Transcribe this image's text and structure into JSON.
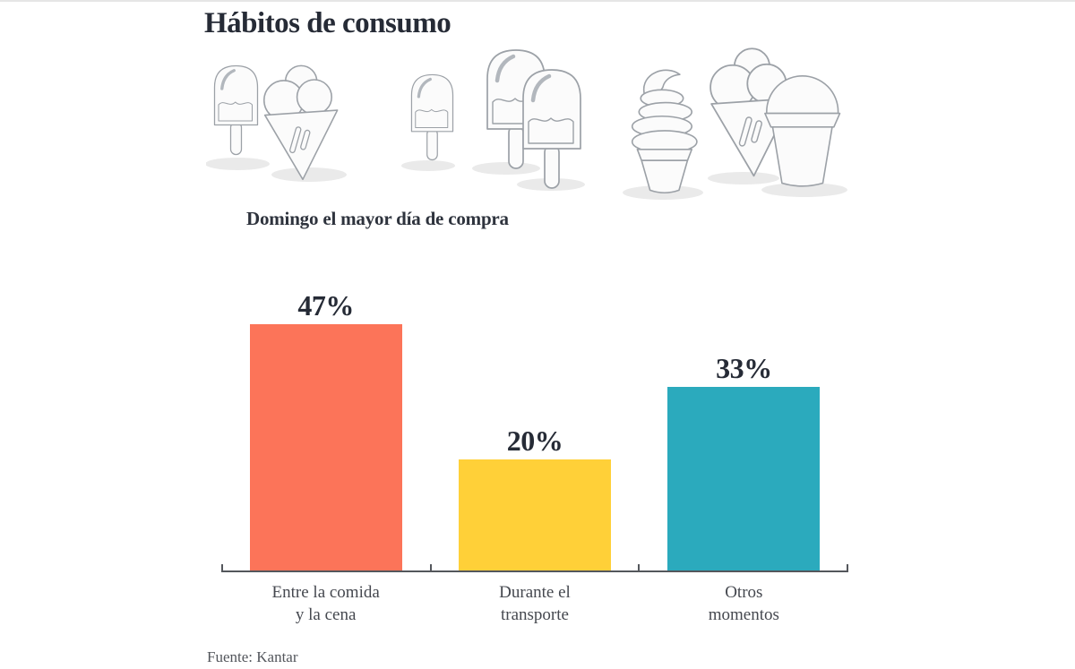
{
  "page": {
    "title": "Hábitos de consumo",
    "source": "Fuente: Kantar"
  },
  "illustrations": {
    "groups": [
      {
        "icons": [
          "popsicle-icon",
          "ice-cream-cone-icon"
        ]
      },
      {
        "icons": [
          "popsicle-icon",
          "popsicle-icon",
          "popsicle-icon"
        ]
      },
      {
        "icons": [
          "soft-serve-cone-icon",
          "ice-cream-cone-icon",
          "ice-cream-cup-icon"
        ]
      }
    ]
  },
  "chart_data": {
    "type": "bar",
    "title": "Domingo el mayor día de compra",
    "categories": [
      "Entre la comida\ny la cena",
      "Durante el\ntransporte",
      "Otros\nmomentos"
    ],
    "values": [
      47,
      20,
      33
    ],
    "value_labels": [
      "47%",
      "20%",
      "33%"
    ],
    "unit": "%",
    "ylim": [
      0,
      50
    ],
    "grid": false,
    "legend": false,
    "bar_colors": [
      "#FC7459",
      "#FFD038",
      "#2BAABD"
    ]
  },
  "colors": {
    "ink": "#262B36",
    "category_label": "#45484F",
    "axis": "#54575C",
    "orange": "#FC7459",
    "yellow": "#FFD038",
    "teal": "#2BAABD",
    "illustration_outline": "#9CA1A7",
    "illustration_shadow": "#EAEAEA"
  }
}
